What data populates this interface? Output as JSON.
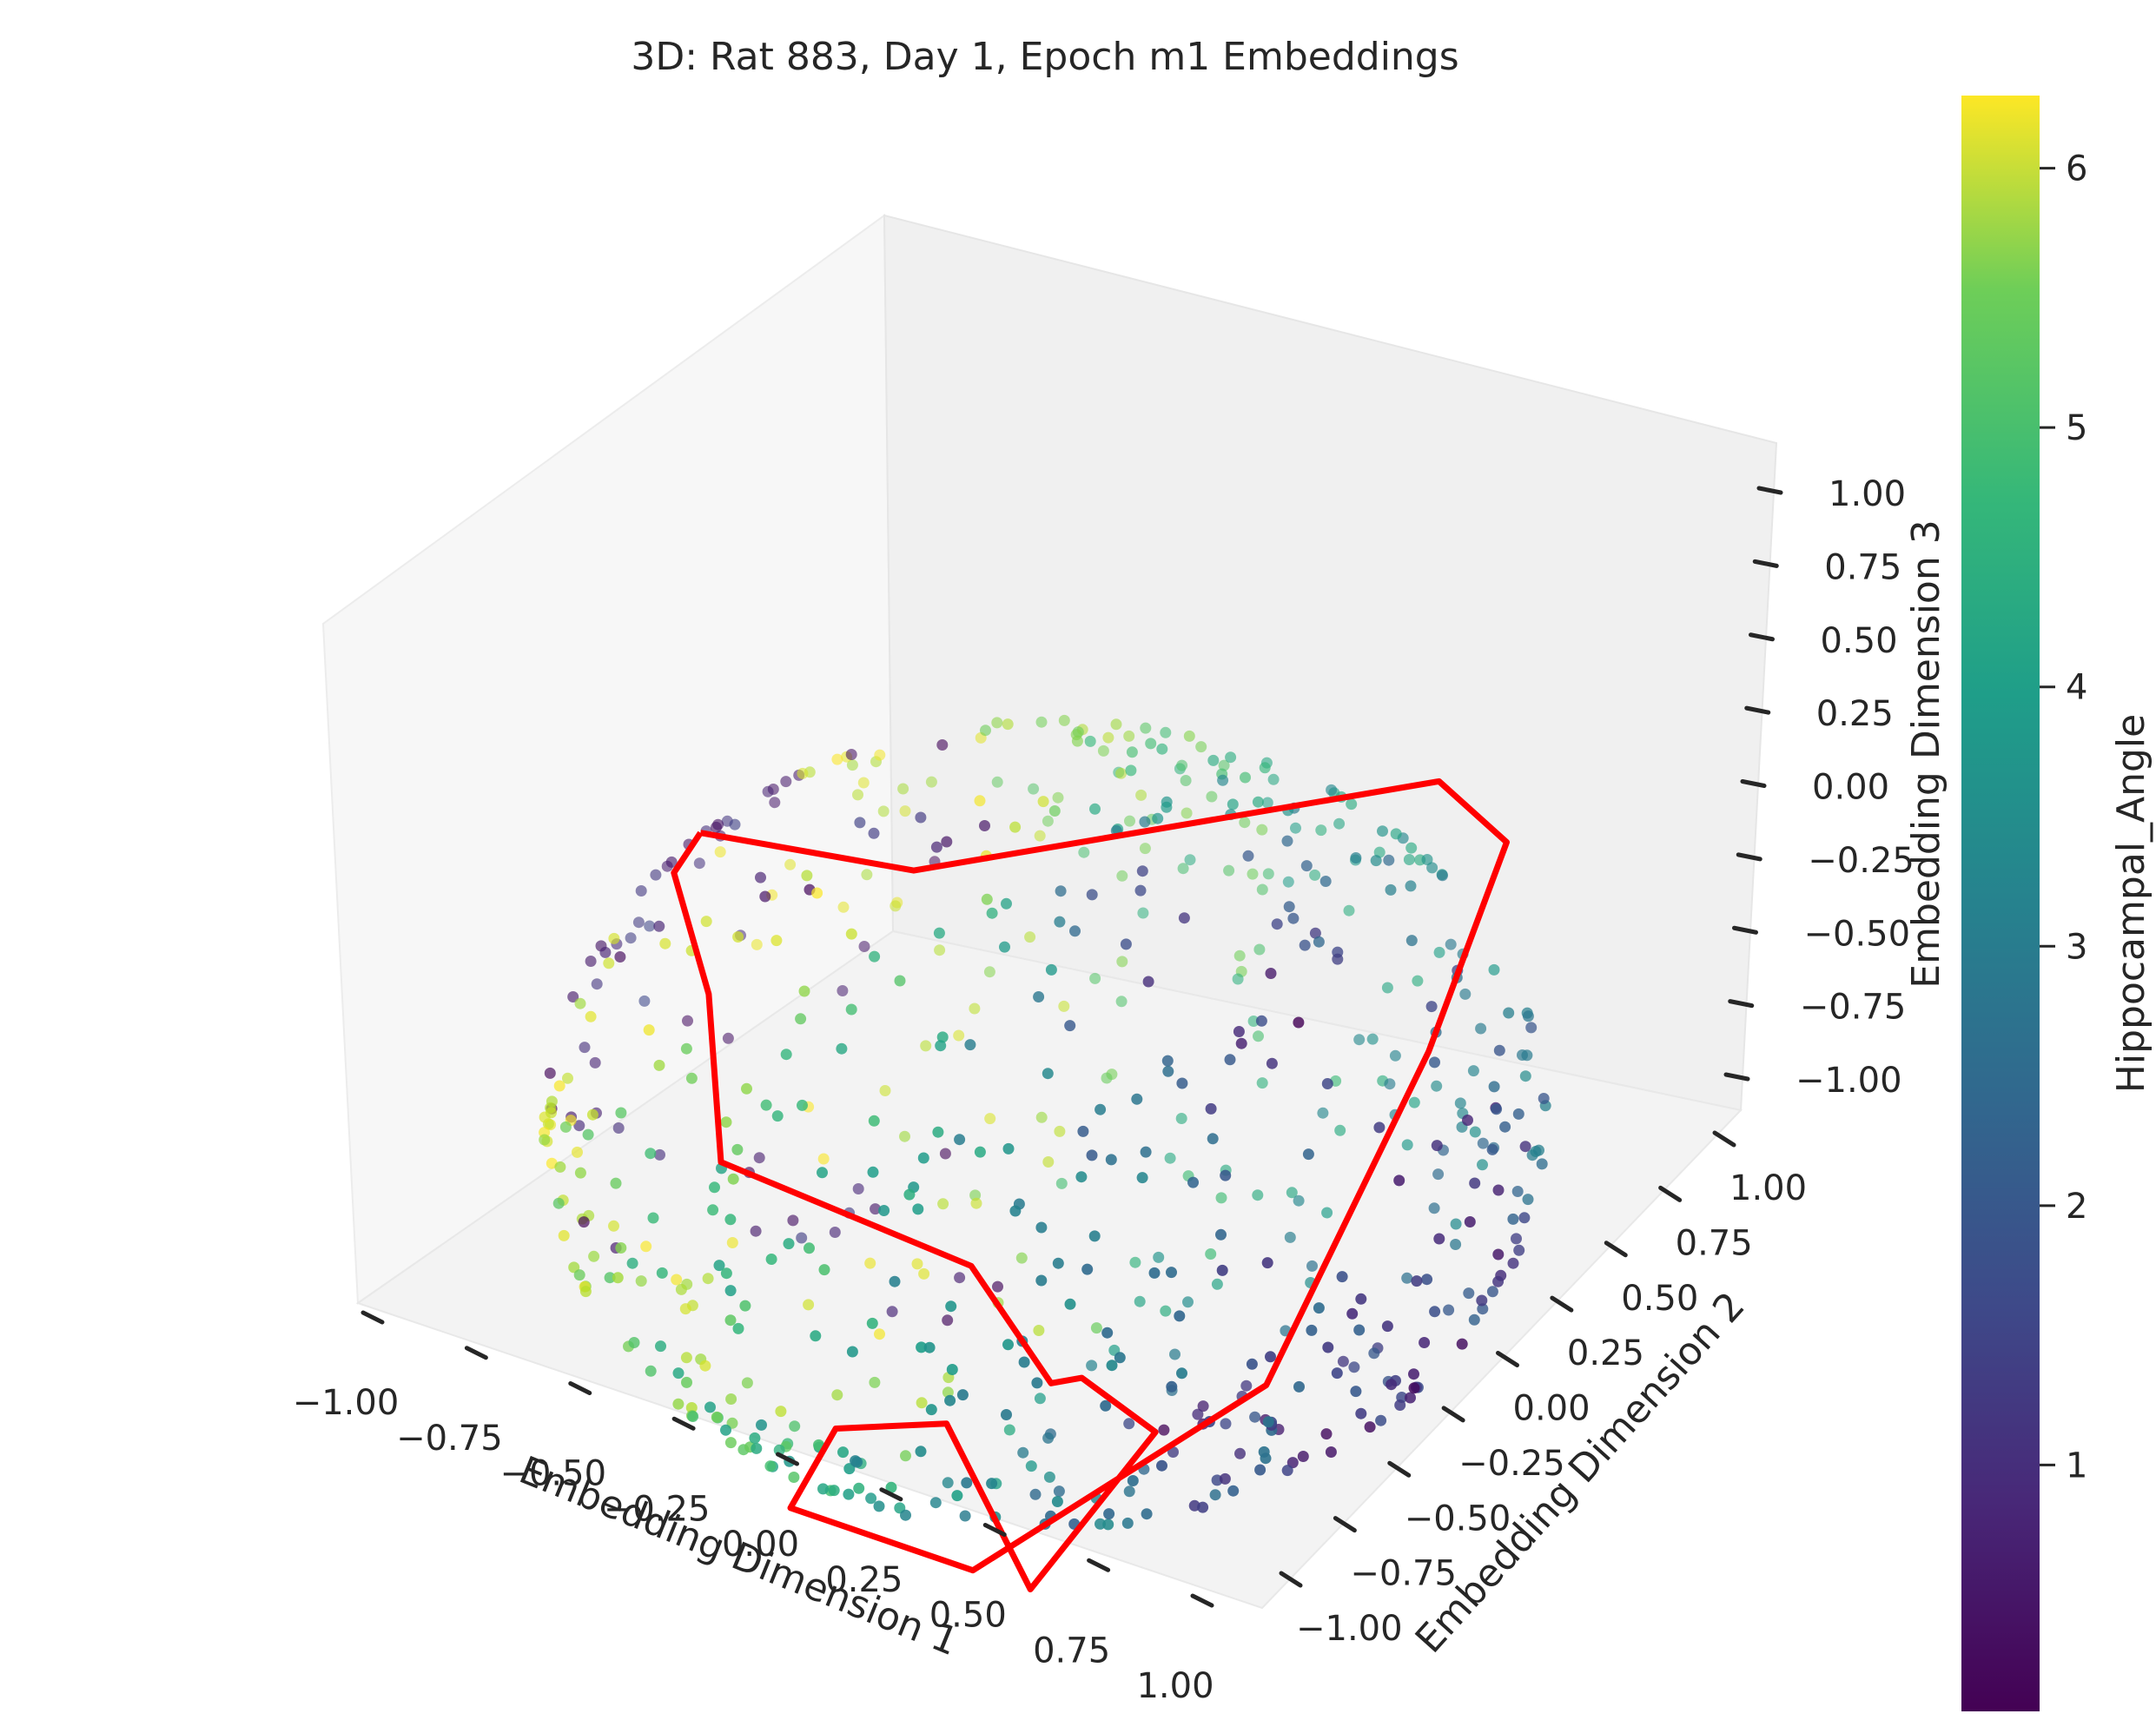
{
  "chart_data": {
    "type": "scatter",
    "projection": "3d",
    "title": "3D: Rat 883, Day 1, Epoch m1 Embeddings",
    "xlabel": "Embedding Dimension 1",
    "ylabel": "Embedding Dimension 2",
    "zlabel": "Embedding Dimension 3",
    "xlim": [
      -1.0,
      1.0
    ],
    "ylim": [
      -1.0,
      1.0
    ],
    "zlim": [
      -1.0,
      1.0
    ],
    "x_ticks": [
      "−1.00",
      "−0.75",
      "−0.50",
      "−0.25",
      "0.00",
      "0.25",
      "0.50",
      "0.75",
      "1.00"
    ],
    "y_ticks": [
      "−1.00",
      "−0.75",
      "−0.50",
      "−0.25",
      "0.00",
      "0.25",
      "0.50",
      "0.75",
      "1.00"
    ],
    "z_ticks": [
      "−1.00",
      "−0.75",
      "−0.50",
      "−0.25",
      "0.00",
      "0.25",
      "0.50",
      "0.75",
      "1.00"
    ],
    "colorbar": {
      "label": "Hippocampal_Angle",
      "colormap": "viridis",
      "range": [
        0.05,
        6.28
      ],
      "ticks": [
        "1",
        "2",
        "3",
        "4",
        "5",
        "6"
      ]
    },
    "grid": false,
    "point_count_approx": 700,
    "point_distribution": "points on the surface of a unit sphere (ring-like band), color = Hippocampal_Angle",
    "trajectory": {
      "color": "#ff0000",
      "description": "red polyline connecting a subset of embedding points"
    }
  }
}
